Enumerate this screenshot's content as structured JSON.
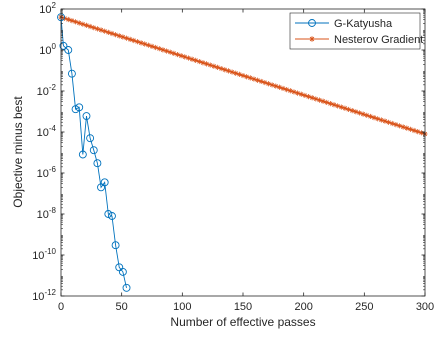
{
  "chart_data": {
    "type": "line",
    "title": "",
    "xlabel": "Number of effective passes",
    "ylabel": "Objective minus best",
    "xlim": [
      0,
      300
    ],
    "ylim": [
      1e-12,
      100
    ],
    "yscale": "log",
    "grid": false,
    "legend_position": "top-right",
    "x_ticks": [
      {
        "value": 0,
        "label": "0"
      },
      {
        "value": 50,
        "label": "50"
      },
      {
        "value": 100,
        "label": "100"
      },
      {
        "value": 150,
        "label": "150"
      },
      {
        "value": 200,
        "label": "200"
      },
      {
        "value": 250,
        "label": "250"
      },
      {
        "value": 300,
        "label": "300"
      }
    ],
    "y_ticks": [
      {
        "value": 1e-12,
        "mantissa": "10",
        "exp": "-12"
      },
      {
        "value": 1e-10,
        "mantissa": "10",
        "exp": "-10"
      },
      {
        "value": 1e-08,
        "mantissa": "10",
        "exp": "-8"
      },
      {
        "value": 1e-06,
        "mantissa": "10",
        "exp": "-6"
      },
      {
        "value": 0.0001,
        "mantissa": "10",
        "exp": "-4"
      },
      {
        "value": 0.01,
        "mantissa": "10",
        "exp": "-2"
      },
      {
        "value": 1,
        "mantissa": "10",
        "exp": "0"
      },
      {
        "value": 100,
        "mantissa": "10",
        "exp": "2"
      }
    ],
    "series": [
      {
        "name": "G-Katyusha",
        "color": "#0072BD",
        "marker": "circle",
        "x": [
          0,
          2,
          6,
          9,
          12,
          15,
          18,
          21,
          24,
          27,
          30,
          33,
          36,
          39,
          42,
          45,
          48,
          51,
          54
        ],
        "y": [
          40,
          1.6,
          1.0,
          0.07,
          0.0013,
          0.0016,
          8e-06,
          0.0006,
          5e-05,
          1.3e-05,
          3e-06,
          2e-07,
          3.5e-07,
          1e-08,
          8e-09,
          3e-10,
          2.5e-11,
          1.5e-11,
          2.5e-12
        ]
      },
      {
        "name": "Nesterov Gradient",
        "color": "#D95319",
        "marker": "star",
        "x_start": 0,
        "x_end": 300,
        "x_step": 3,
        "y_start": 40,
        "y_end": 8e-05
      }
    ]
  }
}
